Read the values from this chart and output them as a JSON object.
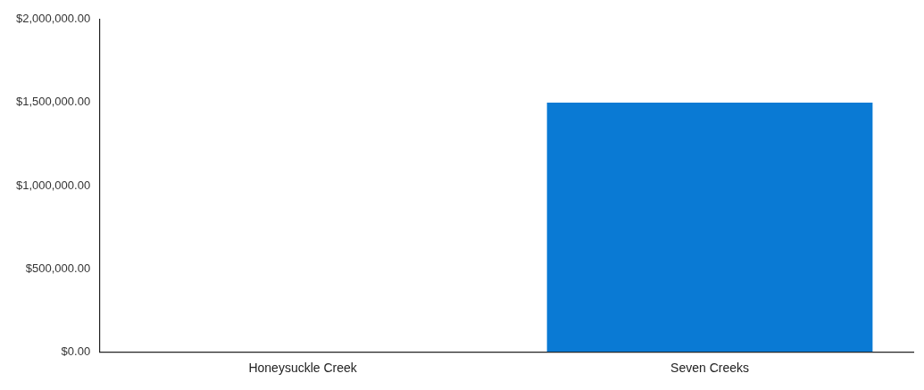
{
  "chart_data": {
    "type": "bar",
    "categories": [
      "Honeysuckle Creek",
      "Seven Creeks"
    ],
    "values": [
      0,
      1500000
    ],
    "color": "#0a7ad4",
    "ylim": [
      0,
      2000000
    ],
    "yticks": [
      {
        "value": 0,
        "label": "$0.00"
      },
      {
        "value": 500000,
        "label": "$500,000.00"
      },
      {
        "value": 1000000,
        "label": "$1,000,000.00"
      },
      {
        "value": 1500000,
        "label": "$1,500,000.00"
      },
      {
        "value": 2000000,
        "label": "$2,000,000.00"
      }
    ],
    "grid": false,
    "legend": false
  }
}
